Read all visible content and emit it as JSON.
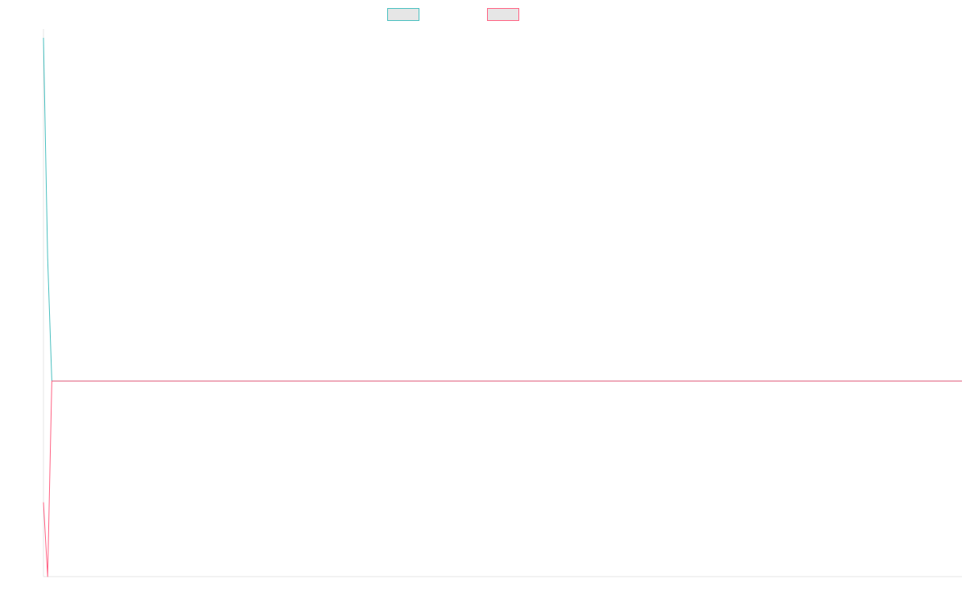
{
  "chart_data": {
    "type": "line",
    "title": "",
    "xlabel": "",
    "ylabel": "",
    "x": [
      0,
      1,
      2,
      3,
      4,
      5,
      10,
      20,
      40,
      60,
      80,
      100,
      120,
      140,
      160,
      180,
      200,
      220
    ],
    "xlim": [
      0,
      220
    ],
    "ylim": [
      -1,
      1.8
    ],
    "grid": false,
    "legend_position": "top-center",
    "series": [
      {
        "color": "#4bc0c0",
        "legend_fill": "#e6e6e6",
        "values": [
          1.755,
          0.63,
          0.0,
          0.0,
          0.0,
          0.0,
          0.0,
          0.0,
          0.0,
          0.0,
          0.0,
          0.0,
          0.0,
          0.0,
          0.0,
          0.0,
          0.0,
          0.0
        ]
      },
      {
        "color": "#ff6384",
        "legend_fill": "#e6e6e6",
        "values": [
          -0.62,
          -1.0,
          0.0,
          0.0,
          0.0,
          0.0,
          0.0,
          0.0,
          0.0,
          0.0,
          0.0,
          0.0,
          0.0,
          0.0,
          0.0,
          0.0,
          0.0,
          0.0
        ]
      }
    ]
  }
}
